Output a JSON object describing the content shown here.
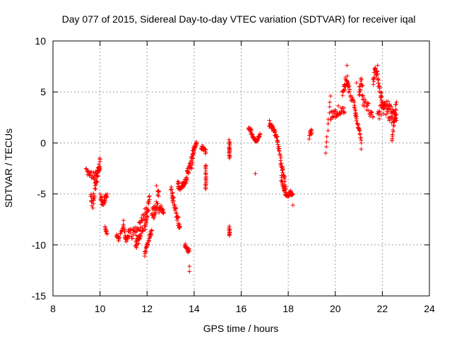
{
  "chart_data": {
    "type": "scatter",
    "title": "Day 077 of 2015, Sidereal Day-to-day VTEC variation (SDTVAR) for receiver iqal",
    "xlabel": "GPS time / hours",
    "ylabel": "SDTVAR / TECUs",
    "xlim": [
      8,
      24
    ],
    "ylim": [
      -15,
      10
    ],
    "xticks": [
      8,
      10,
      12,
      14,
      16,
      18,
      20,
      22,
      24
    ],
    "yticks": [
      -15,
      -10,
      -5,
      0,
      5,
      10
    ],
    "grid": true,
    "marker": "plus",
    "color": "#ff0000",
    "segments": [
      {
        "x": [
          9.4,
          9.6,
          9.8,
          9.9,
          10.0
        ],
        "y": [
          -2.7,
          -3.0,
          -3.2,
          -2.8,
          -2.6
        ],
        "spread": 0.8
      },
      {
        "x": [
          9.6,
          9.7,
          9.8,
          9.9,
          10.0
        ],
        "y": [
          -5.2,
          -6.0,
          -4.2,
          -3.0,
          -1.8
        ],
        "spread": 1.0
      },
      {
        "x": [
          10.0,
          10.1,
          10.2,
          10.3
        ],
        "y": [
          -5.3,
          -5.8,
          -5.6,
          -5.0
        ],
        "spread": 0.7
      },
      {
        "x": [
          10.2,
          10.3
        ],
        "y": [
          -8.3,
          -8.9
        ],
        "spread": 0.3
      },
      {
        "x": [
          10.7,
          10.8,
          11.0,
          11.1,
          11.2
        ],
        "y": [
          -9.0,
          -9.5,
          -8.0,
          -9.6,
          -9.2
        ],
        "spread": 0.4
      },
      {
        "x": [
          11.2,
          11.4,
          11.6,
          11.8,
          12.0
        ],
        "y": [
          -9.0,
          -8.8,
          -8.5,
          -7.5,
          -6.5
        ],
        "spread": 1.1
      },
      {
        "x": [
          11.5,
          11.6,
          11.7,
          11.9,
          12.0,
          12.1
        ],
        "y": [
          -10.1,
          -9.6,
          -9.0,
          -8.4,
          -7.0,
          -5.2
        ],
        "spread": 0.9
      },
      {
        "x": [
          11.9,
          12.0,
          12.1,
          12.2
        ],
        "y": [
          -10.8,
          -10.0,
          -9.3,
          -8.6
        ],
        "spread": 0.6
      },
      {
        "x": [
          12.2,
          12.3,
          12.4,
          12.5
        ],
        "y": [
          -6.5,
          -7.0,
          -6.2,
          -4.8
        ],
        "spread": 1.2
      },
      {
        "x": [
          12.5,
          12.6,
          12.7
        ],
        "y": [
          -6.6,
          -6.3,
          -6.9
        ],
        "spread": 0.6
      },
      {
        "x": [
          13.0,
          13.1,
          13.2,
          13.3,
          13.4
        ],
        "y": [
          -4.5,
          -5.5,
          -6.5,
          -7.5,
          -8.2
        ],
        "spread": 0.8
      },
      {
        "x": [
          13.3,
          13.4,
          13.5,
          13.6,
          13.7
        ],
        "y": [
          -4.0,
          -4.4,
          -4.2,
          -3.8,
          -3.5
        ],
        "spread": 0.6
      },
      {
        "x": [
          13.6,
          13.7,
          13.8
        ],
        "y": [
          -10.0,
          -10.5,
          -10.6
        ],
        "spread": 0.4
      },
      {
        "x": [
          13.7,
          13.8,
          13.9,
          14.0
        ],
        "y": [
          -3.0,
          -2.5,
          -1.5,
          -0.6
        ],
        "spread": 0.6
      },
      {
        "x": [
          13.9,
          14.0,
          14.1
        ],
        "y": [
          -2.6,
          -0.4,
          0.0
        ],
        "spread": 0.5
      },
      {
        "x": [
          14.3,
          14.4,
          14.5
        ],
        "y": [
          -0.5,
          -0.5,
          -0.9
        ],
        "spread": 0.4
      },
      {
        "x": [
          14.5,
          14.5,
          14.5
        ],
        "y": [
          -2.1,
          -3.4,
          -4.5
        ],
        "spread": 0.2
      },
      {
        "x": [
          15.5,
          15.5,
          15.5
        ],
        "y": [
          0.3,
          -0.8,
          -1.5
        ],
        "spread": 0.2
      },
      {
        "x": [
          15.5,
          15.5
        ],
        "y": [
          -8.2,
          -9.1
        ],
        "spread": 0.2
      },
      {
        "x": [
          16.3,
          16.4,
          16.5,
          16.6,
          16.7,
          16.8
        ],
        "y": [
          1.5,
          1.3,
          0.6,
          0.2,
          0.3,
          0.9
        ],
        "spread": 0.3
      },
      {
        "x": [
          17.2,
          17.3,
          17.4,
          17.5,
          17.6,
          17.7,
          17.8,
          17.9
        ],
        "y": [
          1.8,
          1.6,
          1.2,
          0.7,
          -0.5,
          -2.0,
          -3.0,
          -4.5
        ],
        "spread": 0.5
      },
      {
        "x": [
          17.7,
          17.8,
          17.9,
          18.0,
          18.1,
          18.2
        ],
        "y": [
          -3.3,
          -4.5,
          -5.0,
          -5.1,
          -4.9,
          -5.0
        ],
        "spread": 0.4
      },
      {
        "x": [
          18.9,
          19.0
        ],
        "y": [
          0.6,
          1.3
        ],
        "spread": 0.6
      },
      {
        "x": [
          19.6,
          19.8
        ],
        "y": [
          -1.0,
          4.6
        ],
        "spread": 0.2
      },
      {
        "x": [
          19.8,
          20.0,
          20.2,
          20.4
        ],
        "y": [
          2.5,
          3.0,
          3.2,
          3.0
        ],
        "spread": 1.0
      },
      {
        "x": [
          20.3,
          20.4,
          20.5,
          20.6,
          20.8
        ],
        "y": [
          4.5,
          5.5,
          6.5,
          5.0,
          3.5
        ],
        "spread": 1.1
      },
      {
        "x": [
          20.8,
          20.9,
          21.0,
          21.1
        ],
        "y": [
          3.5,
          2.5,
          1.5,
          0.0
        ],
        "spread": 1.0
      },
      {
        "x": [
          21.0,
          21.1,
          21.2,
          21.4,
          21.6
        ],
        "y": [
          5.0,
          6.0,
          4.0,
          3.5,
          2.5
        ],
        "spread": 1.1
      },
      {
        "x": [
          21.6,
          21.7,
          21.8,
          21.9,
          22.0
        ],
        "y": [
          6.0,
          7.2,
          6.5,
          5.0,
          4.0
        ],
        "spread": 0.9
      },
      {
        "x": [
          21.8,
          22.0,
          22.2,
          22.4,
          22.6
        ],
        "y": [
          2.5,
          3.5,
          3.0,
          2.5,
          2.8
        ],
        "spread": 1.2
      },
      {
        "x": [
          22.0,
          22.2,
          22.4,
          22.6
        ],
        "y": [
          3.5,
          3.8,
          3.2,
          2.2
        ],
        "spread": 0.8
      },
      {
        "x": [
          22.4,
          22.5,
          22.6
        ],
        "y": [
          0.2,
          2.0,
          4.0
        ],
        "spread": 0.5
      }
    ],
    "outliers": [
      {
        "x": 10.0,
        "y": -1.6
      },
      {
        "x": 11.0,
        "y": -7.6
      },
      {
        "x": 11.9,
        "y": -11.1
      },
      {
        "x": 12.4,
        "y": -4.2
      },
      {
        "x": 13.8,
        "y": -12.1
      },
      {
        "x": 13.8,
        "y": -12.6
      },
      {
        "x": 16.6,
        "y": -3.0
      },
      {
        "x": 17.2,
        "y": 2.2
      },
      {
        "x": 18.2,
        "y": -6.1
      },
      {
        "x": 20.9,
        "y": 5.9
      },
      {
        "x": 21.1,
        "y": -0.6
      },
      {
        "x": 21.8,
        "y": 7.6
      },
      {
        "x": 20.5,
        "y": 7.6
      }
    ]
  }
}
